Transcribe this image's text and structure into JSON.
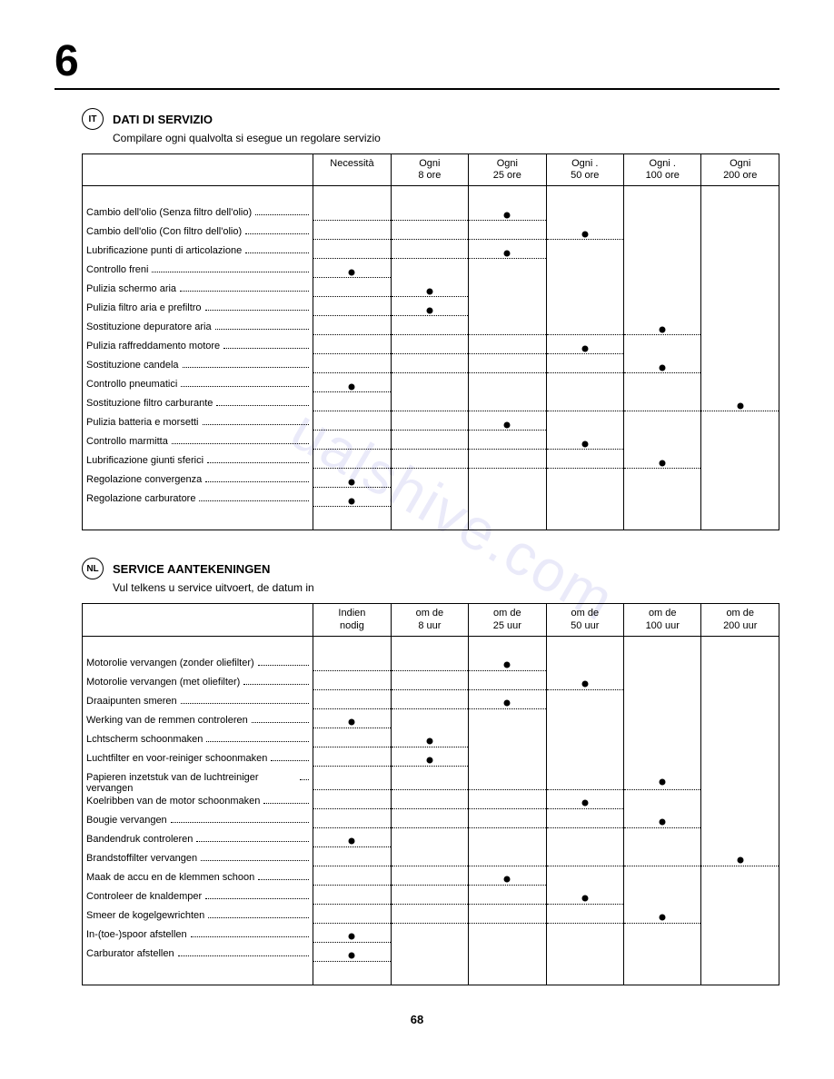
{
  "chapter": "6",
  "page_number": "68",
  "watermark": "ualshive.com",
  "sections": [
    {
      "lang_badge": "IT",
      "title": "DATI DI SERVIZIO",
      "subtitle": "Compilare ogni qualvolta si esegue un regolare servizio",
      "columns": [
        "",
        "Necessità",
        "Ogni\n8 ore",
        "Ogni\n25 ore",
        "Ogni .\n50 ore",
        "Ogni .\n100 ore",
        "Ogni\n200 ore"
      ],
      "rows": [
        {
          "label": "Cambio dell'olio (Senza filtro dell'olio)",
          "dot_col": 3
        },
        {
          "label": "Cambio dell'olio (Con filtro dell'olio)",
          "dot_col": 4
        },
        {
          "label": "Lubrificazione punti di articolazione",
          "dot_col": 3
        },
        {
          "label": "Controllo freni",
          "dot_col": 1
        },
        {
          "label": "Pulizia schermo aria",
          "dot_col": 2
        },
        {
          "label": "Pulizia filtro aria e prefiltro",
          "dot_col": 2
        },
        {
          "label": "Sostituzione depuratore aria",
          "dot_col": 5
        },
        {
          "label": "Pulizia raffreddamento motore",
          "dot_col": 4
        },
        {
          "label": "Sostituzione candela",
          "dot_col": 5
        },
        {
          "label": "Controllo pneumatici",
          "dot_col": 1
        },
        {
          "label": "Sostituzione filtro carburante",
          "dot_col": 6
        },
        {
          "label": "Pulizia batteria e morsetti",
          "dot_col": 3
        },
        {
          "label": "Controllo marmitta",
          "dot_col": 4
        },
        {
          "label": "Lubrificazione giunti sferici",
          "dot_col": 5
        },
        {
          "label": "Regolazione convergenza",
          "dot_col": 1
        },
        {
          "label": "Regolazione carburatore",
          "dot_col": 1
        }
      ]
    },
    {
      "lang_badge": "NL",
      "title": "SERVICE AANTEKENINGEN",
      "subtitle": "Vul telkens u service uitvoert, de datum in",
      "columns": [
        "",
        "Indien\nnodig",
        "om de\n8 uur",
        "om de\n25 uur",
        "om de\n50 uur",
        "om de\n100 uur",
        "om de\n200 uur"
      ],
      "rows": [
        {
          "label": "Motorolie vervangen (zonder oliefilter)",
          "dot_col": 3
        },
        {
          "label": "Motorolie vervangen (met oliefilter)",
          "dot_col": 4
        },
        {
          "label": "Draaipunten smeren",
          "dot_col": 3
        },
        {
          "label": "Werking van de remmen controleren",
          "dot_col": 1
        },
        {
          "label": "Lchtscherm schoonmaken",
          "dot_col": 2
        },
        {
          "label": "Luchtfilter en voor-reiniger schoonmaken",
          "dot_col": 2,
          "tall": true
        },
        {
          "label": "Papieren inzetstuk van de luchtreiniger vervangen",
          "dot_col": 5,
          "tall": true
        },
        {
          "label": "Koelribben van de motor schoonmaken",
          "dot_col": 4,
          "tall": true
        },
        {
          "label": "Bougie vervangen",
          "dot_col": 5
        },
        {
          "label": "Bandendruk controleren",
          "dot_col": 1
        },
        {
          "label": "Brandstoffilter vervangen",
          "dot_col": 6
        },
        {
          "label": "Maak de accu en de klemmen schoon",
          "dot_col": 3,
          "tall": true
        },
        {
          "label": "Controleer de knaldemper",
          "dot_col": 4
        },
        {
          "label": "Smeer de kogelgewrichten",
          "dot_col": 5
        },
        {
          "label": "In-(toe-)spoor afstellen",
          "dot_col": 1
        },
        {
          "label": "Carburator afstellen",
          "dot_col": 1
        }
      ]
    }
  ]
}
